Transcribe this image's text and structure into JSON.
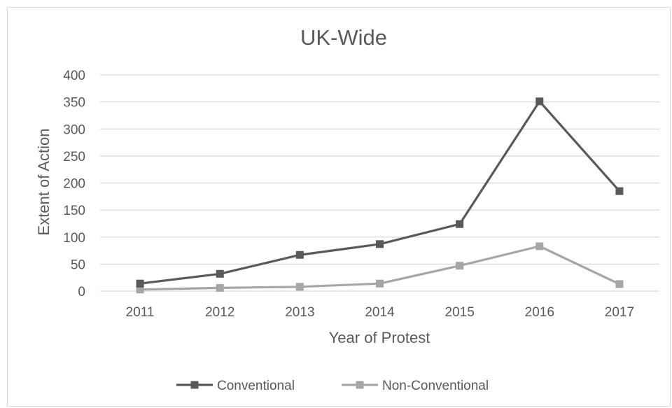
{
  "chart_data": {
    "type": "line",
    "title": "UK-Wide",
    "xlabel": "Year of Protest",
    "ylabel": "Extent of Action",
    "categories": [
      "2011",
      "2012",
      "2013",
      "2014",
      "2015",
      "2016",
      "2017"
    ],
    "ylim": [
      0,
      400
    ],
    "yticks": [
      "0",
      "50",
      "100",
      "150",
      "200",
      "250",
      "300",
      "350",
      "400"
    ],
    "grid": true,
    "legend_position": "bottom",
    "series": [
      {
        "name": "Conventional",
        "values": [
          14,
          32,
          67,
          87,
          124,
          351,
          185
        ],
        "color": "#595959",
        "marker": "square"
      },
      {
        "name": "Non-Conventional",
        "values": [
          3,
          6,
          8,
          14,
          47,
          83,
          13
        ],
        "color": "#a6a6a6",
        "marker": "square"
      }
    ]
  }
}
